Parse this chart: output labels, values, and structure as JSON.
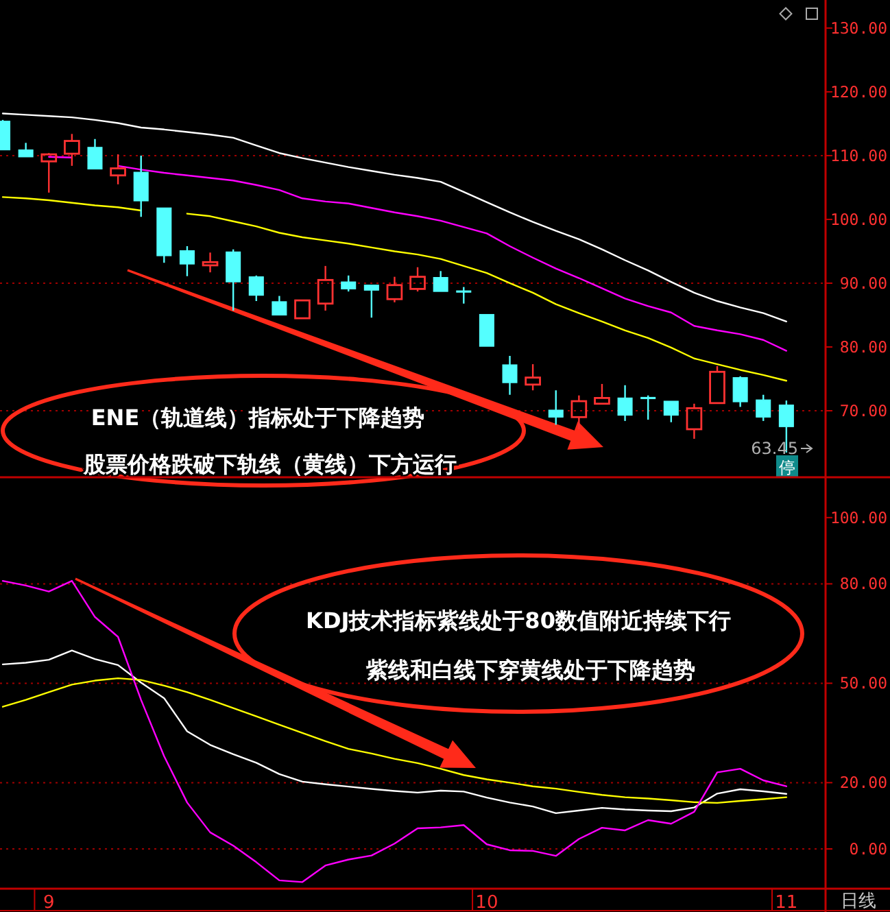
{
  "chart_data": [
    {
      "type": "candlestick",
      "tick_labels": "y",
      "categories": [
        null,
        null,
        null,
        null,
        null,
        null,
        null,
        null,
        null,
        null,
        null,
        null,
        null,
        null,
        null,
        null,
        null,
        null,
        null,
        null,
        null,
        null,
        null,
        null,
        null,
        null,
        null,
        null,
        null,
        null,
        null,
        null,
        null,
        null,
        null
      ],
      "ohlc": [
        [
          115.4,
          115.6,
          110.9,
          110.9
        ],
        [
          110.9,
          112,
          109.8,
          109.8
        ],
        [
          109.1,
          110.4,
          104.2,
          110.2
        ],
        [
          110.3,
          113.4,
          108.4,
          112.3
        ],
        [
          111.3,
          112.6,
          107.9,
          107.9
        ],
        [
          106.9,
          110.2,
          105.5,
          108
        ],
        [
          107.4,
          110,
          100.4,
          102.9
        ],
        [
          101.8,
          101.8,
          93.2,
          94.3
        ],
        [
          95.1,
          95.8,
          91.1,
          93
        ],
        [
          92.8,
          94.8,
          91.7,
          93.3
        ],
        [
          94.9,
          95.3,
          85.7,
          90.2
        ],
        [
          91,
          91.2,
          87.2,
          88.1
        ],
        [
          87.1,
          88,
          85,
          85
        ],
        [
          84.5,
          87.3,
          84.5,
          87.3
        ],
        [
          86.8,
          92.7,
          85.7,
          90.5
        ],
        [
          90.2,
          91.2,
          88.7,
          89.1
        ],
        [
          89.7,
          89.7,
          84.6,
          88.9
        ],
        [
          87.5,
          91,
          87,
          89.7
        ],
        [
          89.1,
          92.5,
          88.7,
          91
        ],
        [
          90.9,
          91.9,
          88.7,
          88.7
        ],
        [
          88.8,
          89.4,
          86.8,
          88.6
        ],
        [
          85.1,
          85.1,
          80.1,
          80.1
        ],
        [
          77.2,
          78.6,
          72.5,
          74.4
        ],
        [
          74.1,
          77.3,
          73.2,
          75.2
        ],
        [
          70.1,
          73.2,
          67.8,
          69
        ],
        [
          69,
          72.4,
          67.1,
          71.5
        ],
        [
          71.1,
          74.2,
          71.1,
          72
        ],
        [
          72,
          74,
          68.4,
          69.3
        ],
        [
          72.1,
          72.4,
          68.6,
          71.9
        ],
        [
          71.5,
          71.5,
          68.2,
          69.3
        ],
        [
          67.1,
          71.1,
          65.6,
          70.4
        ],
        [
          71.2,
          77,
          71.2,
          76.1
        ],
        [
          75.2,
          75.4,
          70.6,
          71.4
        ],
        [
          71.7,
          72.5,
          68.4,
          69
        ],
        [
          70.9,
          71.6,
          63.45,
          67.5
        ]
      ],
      "colors": [
        "#54ffff",
        "#54ffff",
        "#ff3232",
        "#ff3232",
        "#54ffff",
        "#ff3232",
        "#54ffff",
        "#54ffff",
        "#54ffff",
        "#ff3232",
        "#54ffff",
        "#54ffff",
        "#54ffff",
        "#ff3232",
        "#ff3232",
        "#54ffff",
        "#54ffff",
        "#ff3232",
        "#ff3232",
        "#54ffff",
        "#54ffff",
        "#54ffff",
        "#54ffff",
        "#ff3232",
        "#54ffff",
        "#ff3232",
        "#ff3232",
        "#54ffff",
        "#54ffff",
        "#54ffff",
        "#ff3232",
        "#ff3232",
        "#54ffff",
        "#54ffff",
        "#54ffff"
      ],
      "series": [
        {
          "type": "line",
          "color": "#ffffff",
          "values": [
            116.6,
            116.4,
            116.2,
            116.0,
            115.6,
            115.1,
            114.4,
            114.1,
            113.7,
            113.3,
            112.8,
            111.6,
            110.4,
            109.6,
            108.9,
            108.2,
            107.6,
            107.0,
            106.5,
            105.9,
            104.3,
            102.7,
            101.1,
            99.6,
            98.2,
            96.9,
            95.3,
            93.6,
            92.0,
            90.2,
            88.5,
            87.2,
            86.2,
            85.3,
            84.0
          ]
        },
        {
          "type": "line",
          "color": "#ff00ff",
          "values": [
            null,
            null,
            109.8,
            109.7,
            null,
            108.4,
            107.8,
            107.3,
            106.9,
            106.5,
            106.1,
            105.4,
            104.6,
            103.3,
            102.8,
            102.5,
            101.8,
            101.1,
            100.5,
            99.8,
            98.8,
            97.8,
            95.8,
            94.0,
            92.3,
            90.8,
            89.2,
            87.6,
            86.4,
            85.4,
            83.3,
            82.6,
            82.0,
            81.1,
            79.4
          ]
        },
        {
          "type": "line",
          "color": "#ffff00",
          "values": [
            103.5,
            103.3,
            103.0,
            102.6,
            102.2,
            101.9,
            101.4,
            null,
            100.9,
            100.5,
            99.7,
            98.9,
            97.9,
            97.2,
            96.7,
            96.2,
            95.6,
            95.0,
            94.5,
            93.8,
            92.7,
            91.6,
            90.0,
            88.5,
            86.7,
            85.3,
            84.0,
            82.6,
            81.4,
            79.9,
            78.2,
            77.3,
            76.4,
            75.6,
            74.7
          ]
        }
      ],
      "ylim": [
        60,
        134.4
      ],
      "yticks": [
        {
          "value": 70,
          "label": "70.00"
        },
        {
          "value": 80,
          "label": "80.00"
        },
        {
          "value": 90,
          "label": "90.00"
        },
        {
          "value": 100,
          "label": "100.00"
        },
        {
          "value": 110,
          "label": "110.00"
        },
        {
          "value": 120,
          "label": "120.00"
        },
        {
          "value": 130,
          "label": "130.00"
        }
      ],
      "ref_lines": [
        {
          "axis": "y",
          "value": 110,
          "color": "#a00000",
          "line_style": "dotted"
        },
        {
          "axis": "y",
          "value": 90,
          "color": "#a00000",
          "line_style": "dotted"
        },
        {
          "axis": "y",
          "value": 70,
          "color": "#a00000",
          "line_style": "dotted"
        }
      ],
      "annotations": [
        "ENE（轨道线）指标处于下降趋势",
        "股票价格跌破下轨线（黄线）下方运行",
        "63.45",
        "停"
      ]
    },
    {
      "type": "line",
      "categories": [
        null,
        null,
        "9",
        null,
        null,
        null,
        null,
        null,
        null,
        null,
        null,
        null,
        null,
        null,
        null,
        null,
        null,
        null,
        null,
        null,
        null,
        "10",
        null,
        null,
        null,
        null,
        null,
        null,
        null,
        null,
        null,
        null,
        null,
        null,
        "11"
      ],
      "series": [
        {
          "color": "#ffffff",
          "values": [
            55.7,
            56.2,
            57.1,
            59.9,
            57.3,
            55.5,
            50.2,
            45.5,
            35.5,
            31.4,
            28.6,
            26,
            22.6,
            20.3,
            19.5,
            18.8,
            18.1,
            17.5,
            17,
            17.6,
            17.3,
            15.5,
            14,
            12.8,
            10.8,
            11.6,
            12.4,
            11.9,
            11.6,
            11.4,
            12.5,
            16.7,
            18,
            17.4,
            16.6
          ]
        },
        {
          "color": "#ffff00",
          "values": [
            42.9,
            45,
            47.3,
            49.6,
            50.8,
            51.5,
            51,
            49.3,
            47.3,
            45,
            42.5,
            40,
            37.5,
            35,
            32.5,
            30.2,
            28.8,
            27.2,
            25.9,
            24.2,
            22.3,
            21,
            20,
            18.9,
            18.2,
            17.2,
            16.3,
            15.6,
            15.2,
            14.7,
            14.1,
            13.9,
            14.5,
            15,
            15.6
          ]
        },
        {
          "color": "#ff00ff",
          "values": [
            80.9,
            79.5,
            77.7,
            80.9,
            70,
            64,
            45,
            28,
            14,
            5,
            1,
            -4,
            -9.5,
            -10,
            -5,
            -3.2,
            -2,
            1.6,
            6.2,
            6.5,
            7.2,
            1.4,
            -0.4,
            -0.6,
            -2.1,
            3,
            6.4,
            5.6,
            8.7,
            7.6,
            11.2,
            23.1,
            24.2,
            20.7,
            18.9
          ]
        }
      ],
      "ylim": [
        -12,
        113
      ],
      "yticks": [
        {
          "value": 0,
          "label": "0.00"
        },
        {
          "value": 20,
          "label": "20.00"
        },
        {
          "value": 50,
          "label": "50.00"
        },
        {
          "value": 80,
          "label": "80.00"
        },
        {
          "value": 100,
          "label": "100.00"
        }
      ],
      "ref_lines": [
        {
          "axis": "y",
          "value": 80,
          "color": "#a00000",
          "line_style": "dotted"
        },
        {
          "axis": "y",
          "value": 50,
          "color": "#a00000",
          "line_style": "dotted"
        },
        {
          "axis": "y",
          "value": 20,
          "color": "#a00000",
          "line_style": "dotted"
        },
        {
          "axis": "y",
          "value": 0,
          "color": "#a00000",
          "line_style": "dotted"
        }
      ],
      "annotations": [
        "KDJ技术指标紫线处于80数值附近持续下行",
        "紫线和白线下穿黄线处于下降趋势",
        "日线"
      ]
    }
  ]
}
